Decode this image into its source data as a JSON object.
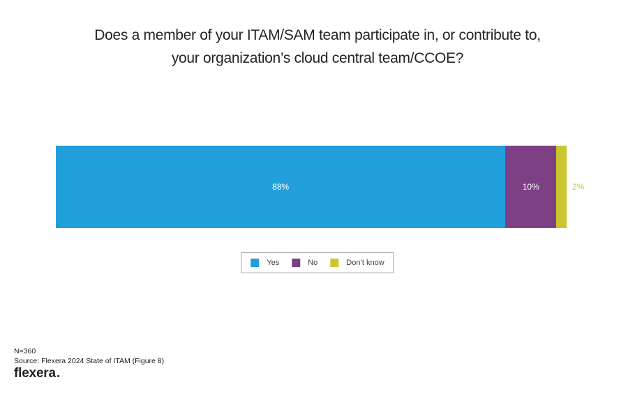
{
  "title": {
    "line1": "Does a member of your ITAM/SAM team participate in, or contribute to,",
    "line2": "your organization’s cloud central team/CCOE?"
  },
  "chart_data": {
    "type": "bar",
    "orientation": "horizontal_stacked",
    "title": "Does a member of your ITAM/SAM team participate in, or contribute to, your organization’s cloud central team/CCOE?",
    "categories": [
      "Yes",
      "No",
      "Don’t know"
    ],
    "values": [
      88,
      10,
      2
    ],
    "value_labels": [
      "88%",
      "10%",
      "2%"
    ],
    "colors": [
      "#219fdb",
      "#7d4084",
      "#cbc62f"
    ],
    "value_label_placement": [
      "inside",
      "inside",
      "outside-right"
    ],
    "xlim": [
      0,
      100
    ],
    "grid": false,
    "legend_position": "bottom-center"
  },
  "legend": {
    "items": [
      {
        "label": "Yes",
        "color": "#219fdb"
      },
      {
        "label": "No",
        "color": "#7d4084"
      },
      {
        "label": "Don’t know",
        "color": "#cbc62f"
      }
    ]
  },
  "footer": {
    "n_label": "N=360",
    "source": "Source: Flexera 2024 State of ITAM (Figure 8)",
    "logo_text": "flexera"
  }
}
